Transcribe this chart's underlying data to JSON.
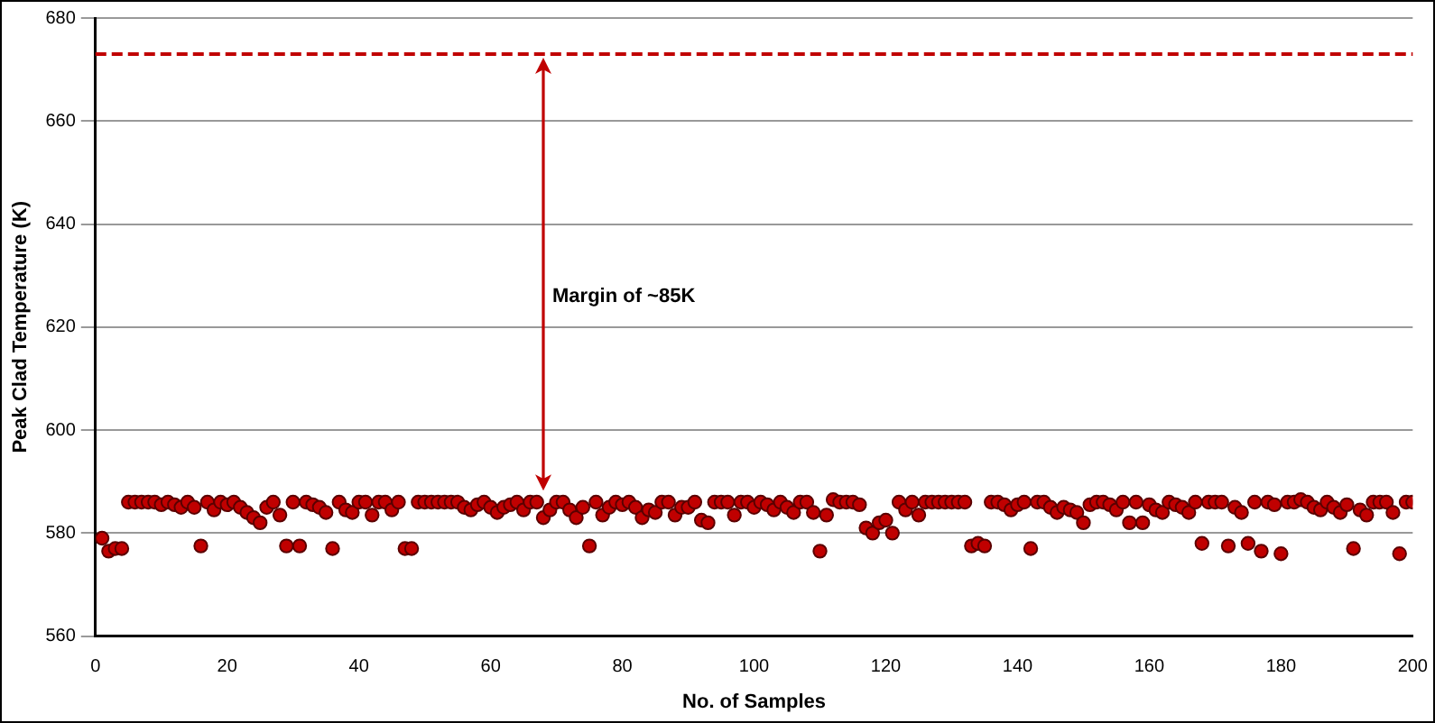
{
  "chart_data": {
    "type": "scatter",
    "xlabel": "No. of Samples",
    "ylabel": "Peak Clad Temperature (K)",
    "x": [
      1,
      2,
      3,
      4,
      5,
      6,
      7,
      8,
      9,
      10,
      11,
      12,
      13,
      14,
      15,
      16,
      17,
      18,
      19,
      20,
      21,
      22,
      23,
      24,
      25,
      26,
      27,
      28,
      29,
      30,
      31,
      32,
      33,
      34,
      35,
      36,
      37,
      38,
      39,
      40,
      41,
      42,
      43,
      44,
      45,
      46,
      47,
      48,
      49,
      50,
      51,
      52,
      53,
      54,
      55,
      56,
      57,
      58,
      59,
      60,
      61,
      62,
      63,
      64,
      65,
      66,
      67,
      68,
      69,
      70,
      71,
      72,
      73,
      74,
      75,
      76,
      77,
      78,
      79,
      80,
      81,
      82,
      83,
      84,
      85,
      86,
      87,
      88,
      89,
      90,
      91,
      92,
      93,
      94,
      95,
      96,
      97,
      98,
      99,
      100,
      101,
      102,
      103,
      104,
      105,
      106,
      107,
      108,
      109,
      110,
      111,
      112,
      113,
      114,
      115,
      116,
      117,
      118,
      119,
      120,
      121,
      122,
      123,
      124,
      125,
      126,
      127,
      128,
      129,
      130,
      131,
      132,
      133,
      134,
      135,
      136,
      137,
      138,
      139,
      140,
      141,
      142,
      143,
      144,
      145,
      146,
      147,
      148,
      149,
      150,
      151,
      152,
      153,
      154,
      155,
      156,
      157,
      158,
      159,
      160,
      161,
      162,
      163,
      164,
      165,
      166,
      167,
      168,
      169,
      170,
      171,
      172,
      173,
      174,
      175,
      176,
      177,
      178,
      179,
      180,
      181,
      182,
      183,
      184,
      185,
      186,
      187,
      188,
      189,
      190,
      191,
      192,
      193,
      194,
      195,
      196,
      197,
      198,
      199,
      200
    ],
    "series": [
      {
        "color": "#c00000",
        "values": [
          579,
          576.5,
          577,
          577,
          586,
          586,
          586,
          586,
          586,
          585.5,
          586,
          585.5,
          585,
          586,
          585,
          577.5,
          586,
          584.5,
          586,
          585.5,
          586,
          585,
          584,
          583,
          582,
          585,
          586,
          583.5,
          577.5,
          586,
          577.5,
          586,
          585.5,
          585,
          584,
          577,
          586,
          584.5,
          584,
          586,
          586,
          583.5,
          586,
          586,
          584.5,
          586,
          577,
          577,
          586,
          586,
          586,
          586,
          586,
          586,
          586,
          585,
          584.5,
          585.5,
          586,
          585,
          584,
          585,
          585.5,
          586,
          584.5,
          586,
          586,
          583,
          584.5,
          586,
          586,
          584.5,
          583,
          585,
          577.5,
          586,
          583.5,
          585,
          586,
          585.5,
          586,
          585,
          583,
          584.5,
          584,
          586,
          586,
          583.5,
          585,
          585,
          586,
          582.5,
          582,
          586,
          586,
          586,
          583.5,
          586,
          586,
          585,
          586,
          585.5,
          584.5,
          586,
          585,
          584,
          586,
          586,
          584,
          576.5,
          583.5,
          586.5,
          586,
          586,
          586,
          585.5,
          581,
          580,
          582,
          582.5,
          580,
          586,
          584.5,
          586,
          583.5,
          586,
          586,
          586,
          586,
          586,
          586,
          586,
          577.5,
          578,
          577.5,
          586,
          586,
          585.5,
          584.5,
          585.5,
          586,
          577,
          586,
          586,
          585,
          584,
          585,
          584.5,
          584,
          582,
          585.5,
          586,
          586,
          585.5,
          584.5,
          586,
          582,
          586,
          582,
          585.5,
          584.5,
          584,
          586,
          585.5,
          585,
          584,
          586,
          578,
          586,
          586,
          586,
          577.5,
          585,
          584,
          578,
          586,
          576.5,
          586,
          585.5,
          576,
          586,
          586,
          586.5,
          586,
          585,
          584.5,
          586,
          585,
          584,
          585.5,
          577,
          584.5,
          583.5,
          586,
          586,
          586,
          584,
          576,
          586,
          586
        ]
      }
    ],
    "xlim": [
      0,
      200
    ],
    "xticks": [
      0,
      20,
      40,
      60,
      80,
      100,
      120,
      140,
      160,
      180,
      200
    ],
    "ylim": [
      560,
      680
    ],
    "yticks": [
      560,
      580,
      600,
      620,
      640,
      660,
      680
    ],
    "grid": "y",
    "marker": "circle",
    "legend": false,
    "ref_lines": [
      {
        "axis": "y",
        "value": 673,
        "color": "#c00000",
        "line_style": "dashed"
      }
    ],
    "annotations": [
      "Margin of ~85K"
    ]
  }
}
